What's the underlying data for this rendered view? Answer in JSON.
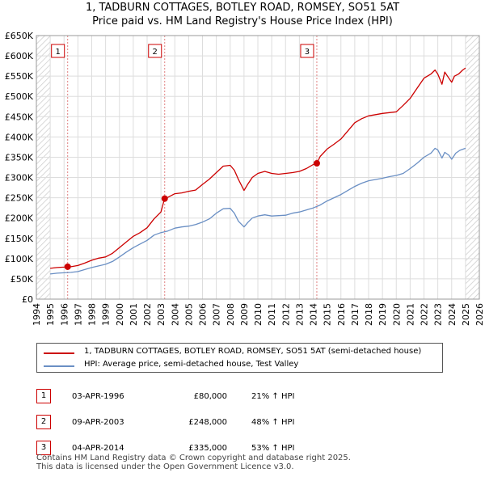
{
  "title": "1, TADBURN COTTAGES, BOTLEY ROAD, ROMSEY, SO51 5AT",
  "subtitle": "Price paid vs. HM Land Registry's House Price Index (HPI)",
  "colors": {
    "price_paid": "#cc0000",
    "hpi": "#6a8fc4",
    "grid": "#dddddd",
    "marker_dash": "#e08080",
    "hatch": "#cccccc"
  },
  "chart_data": {
    "type": "line",
    "title": "1, TADBURN COTTAGES, BOTLEY ROAD, ROMSEY, SO51 5AT",
    "subtitle": "Price paid vs. HM Land Registry's House Price Index (HPI)",
    "xlim": [
      1994,
      2026
    ],
    "ylim": [
      0,
      650000
    ],
    "grid": true,
    "x_ticks": [
      "1994",
      "1995",
      "1996",
      "1997",
      "1998",
      "1999",
      "2000",
      "2001",
      "2002",
      "2003",
      "2004",
      "2005",
      "2006",
      "2007",
      "2008",
      "2009",
      "2010",
      "2011",
      "2012",
      "2013",
      "2014",
      "2015",
      "2016",
      "2017",
      "2018",
      "2019",
      "2020",
      "2021",
      "2022",
      "2023",
      "2024",
      "2025",
      "2026"
    ],
    "y_ticks": [
      {
        "value": 0,
        "label": "£0"
      },
      {
        "value": 50000,
        "label": "£50K"
      },
      {
        "value": 100000,
        "label": "£100K"
      },
      {
        "value": 150000,
        "label": "£150K"
      },
      {
        "value": 200000,
        "label": "£200K"
      },
      {
        "value": 250000,
        "label": "£250K"
      },
      {
        "value": 300000,
        "label": "£300K"
      },
      {
        "value": 350000,
        "label": "£350K"
      },
      {
        "value": 400000,
        "label": "£400K"
      },
      {
        "value": 450000,
        "label": "£450K"
      },
      {
        "value": 500000,
        "label": "£500K"
      },
      {
        "value": 550000,
        "label": "£550K"
      },
      {
        "value": 600000,
        "label": "£600K"
      },
      {
        "value": 650000,
        "label": "£650K"
      }
    ],
    "hatched_ranges": [
      [
        1994,
        1995
      ],
      [
        2025.0,
        2026
      ]
    ],
    "series": [
      {
        "name": "1, TADBURN COTTAGES, BOTLEY ROAD, ROMSEY, SO51 5AT (semi-detached house)",
        "color": "#cc0000",
        "x": [
          1995.0,
          1995.5,
          1996.0,
          1996.26,
          1996.5,
          1997.0,
          1997.5,
          1998.0,
          1998.5,
          1999.0,
          1999.5,
          2000.0,
          2000.5,
          2001.0,
          2001.5,
          2002.0,
          2002.5,
          2003.0,
          2003.26,
          2003.5,
          2004.0,
          2004.5,
          2005.0,
          2005.5,
          2006.0,
          2006.5,
          2007.0,
          2007.5,
          2008.0,
          2008.3,
          2008.6,
          2009.0,
          2009.3,
          2009.6,
          2010.0,
          2010.5,
          2011.0,
          2011.5,
          2012.0,
          2012.5,
          2013.0,
          2013.5,
          2014.0,
          2014.26,
          2014.5,
          2015.0,
          2015.5,
          2016.0,
          2016.5,
          2017.0,
          2017.5,
          2018.0,
          2018.5,
          2019.0,
          2019.5,
          2020.0,
          2020.5,
          2021.0,
          2021.5,
          2022.0,
          2022.5,
          2022.8,
          2023.0,
          2023.3,
          2023.5,
          2023.8,
          2024.0,
          2024.2,
          2024.5,
          2024.8,
          2025.0
        ],
        "values": [
          76000,
          78000,
          79000,
          80000,
          80000,
          83000,
          89000,
          96000,
          101000,
          104000,
          113000,
          127000,
          141000,
          155000,
          164000,
          176000,
          198000,
          215000,
          248000,
          251000,
          260000,
          262000,
          266000,
          269000,
          283000,
          296000,
          312000,
          328000,
          330000,
          318000,
          295000,
          268000,
          285000,
          300000,
          310000,
          315000,
          310000,
          308000,
          310000,
          312000,
          315000,
          322000,
          332000,
          335000,
          352000,
          370000,
          382000,
          395000,
          415000,
          435000,
          445000,
          452000,
          455000,
          458000,
          460000,
          462000,
          478000,
          495000,
          520000,
          545000,
          555000,
          565000,
          555000,
          530000,
          560000,
          545000,
          535000,
          550000,
          555000,
          565000,
          570000
        ]
      },
      {
        "name": "HPI: Average price, semi-detached house, Test Valley",
        "color": "#6a8fc4",
        "x": [
          1995.0,
          1995.5,
          1996.0,
          1996.5,
          1997.0,
          1997.5,
          1998.0,
          1998.5,
          1999.0,
          1999.5,
          2000.0,
          2000.5,
          2001.0,
          2001.5,
          2002.0,
          2002.5,
          2003.0,
          2003.5,
          2004.0,
          2004.5,
          2005.0,
          2005.5,
          2006.0,
          2006.5,
          2007.0,
          2007.5,
          2008.0,
          2008.3,
          2008.6,
          2009.0,
          2009.3,
          2009.6,
          2010.0,
          2010.5,
          2011.0,
          2011.5,
          2012.0,
          2012.5,
          2013.0,
          2013.5,
          2014.0,
          2014.5,
          2015.0,
          2015.5,
          2016.0,
          2016.5,
          2017.0,
          2017.5,
          2018.0,
          2018.5,
          2019.0,
          2019.5,
          2020.0,
          2020.5,
          2021.0,
          2021.5,
          2022.0,
          2022.5,
          2022.8,
          2023.0,
          2023.3,
          2023.5,
          2023.8,
          2024.0,
          2024.3,
          2024.6,
          2025.0
        ],
        "values": [
          62000,
          64000,
          65000,
          66000,
          68000,
          73000,
          78000,
          82000,
          86000,
          93000,
          104000,
          116000,
          127000,
          136000,
          145000,
          158000,
          164000,
          168000,
          175000,
          178000,
          180000,
          184000,
          190000,
          198000,
          212000,
          223000,
          224000,
          212000,
          192000,
          178000,
          190000,
          200000,
          205000,
          208000,
          205000,
          206000,
          207000,
          212000,
          215000,
          220000,
          225000,
          232000,
          242000,
          250000,
          258000,
          268000,
          278000,
          286000,
          292000,
          295000,
          298000,
          302000,
          305000,
          310000,
          322000,
          335000,
          350000,
          360000,
          372000,
          368000,
          348000,
          362000,
          355000,
          345000,
          360000,
          367000,
          372000
        ]
      }
    ],
    "sales": [
      {
        "number": "1",
        "x": 1996.26,
        "value": 80000
      },
      {
        "number": "2",
        "x": 2003.27,
        "value": 248000
      },
      {
        "number": "3",
        "x": 2014.26,
        "value": 335000
      }
    ]
  },
  "legend": {
    "price_label": "1, TADBURN COTTAGES, BOTLEY ROAD, ROMSEY, SO51 5AT (semi-detached house)",
    "hpi_label": "HPI: Average price, semi-detached house, Test Valley"
  },
  "transactions": [
    {
      "number": "1",
      "date": "03-APR-1996",
      "price": "£80,000",
      "hpi": "21% ↑ HPI"
    },
    {
      "number": "2",
      "date": "09-APR-2003",
      "price": "£248,000",
      "hpi": "48% ↑ HPI"
    },
    {
      "number": "3",
      "date": "04-APR-2014",
      "price": "£335,000",
      "hpi": "53% ↑ HPI"
    }
  ],
  "footer": {
    "line1": "Contains HM Land Registry data © Crown copyright and database right 2025.",
    "line2": "This data is licensed under the Open Government Licence v3.0."
  }
}
